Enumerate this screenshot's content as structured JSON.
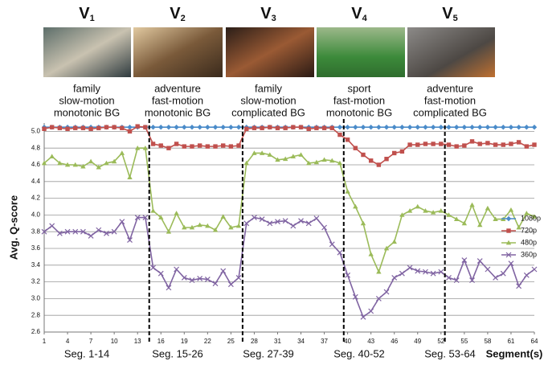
{
  "chart_data": {
    "type": "line",
    "videos": [
      {
        "name": "V",
        "sub": "1",
        "lines": [
          "family",
          "slow-motion",
          "monotonic BG"
        ]
      },
      {
        "name": "V",
        "sub": "2",
        "lines": [
          "adventure",
          "fast-motion",
          "monotonic BG"
        ]
      },
      {
        "name": "V",
        "sub": "3",
        "lines": [
          "family",
          "slow-motion",
          "complicated BG"
        ]
      },
      {
        "name": "V",
        "sub": "4",
        "lines": [
          "sport",
          "fast-motion",
          "monotonic BG"
        ]
      },
      {
        "name": "V",
        "sub": "5",
        "lines": [
          "adventure",
          "fast-motion",
          "complicated BG"
        ]
      }
    ],
    "segments": [
      "Seg. 1-14",
      "Seg. 15-26",
      "Seg. 27-39",
      "Seg. 40-52",
      "Seg. 53-64"
    ],
    "dividers": [
      14.5,
      26.5,
      39.5,
      52.5
    ],
    "y_label": "Avg. Q-score",
    "x_label": "Segment(s)",
    "xlim": [
      1,
      64
    ],
    "xticks": [
      1,
      4,
      7,
      10,
      13,
      16,
      19,
      22,
      25,
      28,
      31,
      34,
      37,
      40,
      43,
      46,
      49,
      52,
      55,
      58,
      61,
      64
    ],
    "ylim": [
      2.6,
      5.1
    ],
    "yticks": [
      2.6,
      2.8,
      {
        "value": 3,
        "label": "3.0"
      },
      3.2,
      3.4,
      3.6,
      3.8,
      {
        "value": 4,
        "label": "4.0"
      },
      4.2,
      4.4,
      4.6,
      4.8,
      {
        "value": 5,
        "label": "5.0"
      }
    ],
    "grid": true,
    "legend": "right",
    "x": [
      1,
      2,
      3,
      4,
      5,
      6,
      7,
      8,
      9,
      10,
      11,
      12,
      13,
      14,
      15,
      16,
      17,
      18,
      19,
      20,
      21,
      22,
      23,
      24,
      25,
      26,
      27,
      28,
      29,
      30,
      31,
      32,
      33,
      34,
      35,
      36,
      37,
      38,
      39,
      40,
      41,
      42,
      43,
      44,
      45,
      46,
      47,
      48,
      49,
      50,
      51,
      52,
      53,
      54,
      55,
      56,
      57,
      58,
      59,
      60,
      61,
      62,
      63,
      64
    ],
    "series": [
      {
        "name": "1080p",
        "color": "#4a8bc9",
        "marker": "diamond",
        "values": [
          5.05,
          5.05,
          5.05,
          5.05,
          5.05,
          5.05,
          5.05,
          5.05,
          5.05,
          5.05,
          5.05,
          5.05,
          5.05,
          5.05,
          5.05,
          5.05,
          5.05,
          5.05,
          5.05,
          5.05,
          5.05,
          5.05,
          5.05,
          5.05,
          5.05,
          5.05,
          5.05,
          5.05,
          5.05,
          5.05,
          5.05,
          5.05,
          5.05,
          5.05,
          5.05,
          5.05,
          5.05,
          5.05,
          5.05,
          5.05,
          5.05,
          5.05,
          5.05,
          5.05,
          5.05,
          5.05,
          5.05,
          5.05,
          5.05,
          5.05,
          5.05,
          5.05,
          5.05,
          5.05,
          5.05,
          5.05,
          5.05,
          5.05,
          5.05,
          5.05,
          5.05,
          5.05,
          5.05,
          5.05
        ]
      },
      {
        "name": "720p",
        "color": "#c0504d",
        "marker": "square",
        "values": [
          5.03,
          5.05,
          5.04,
          5.03,
          5.04,
          5.04,
          5.03,
          5.04,
          5.05,
          5.05,
          5.04,
          5.0,
          5.06,
          5.05,
          4.85,
          4.83,
          4.8,
          4.85,
          4.82,
          4.82,
          4.83,
          4.82,
          4.82,
          4.83,
          4.82,
          4.83,
          5.03,
          5.04,
          5.04,
          5.05,
          5.04,
          5.04,
          5.05,
          5.05,
          5.03,
          5.04,
          5.04,
          5.04,
          4.96,
          4.9,
          4.8,
          4.72,
          4.65,
          4.6,
          4.67,
          4.74,
          4.76,
          4.84,
          4.84,
          4.85,
          4.85,
          4.85,
          4.84,
          4.82,
          4.83,
          4.88,
          4.85,
          4.86,
          4.84,
          4.84,
          4.85,
          4.87,
          4.82,
          4.84
        ]
      },
      {
        "name": "480p",
        "color": "#9bbb59",
        "marker": "triangle",
        "values": [
          4.62,
          4.7,
          4.62,
          4.6,
          4.6,
          4.58,
          4.64,
          4.57,
          4.62,
          4.64,
          4.74,
          4.45,
          4.8,
          4.8,
          4.05,
          3.97,
          3.8,
          4.02,
          3.85,
          3.85,
          3.88,
          3.87,
          3.82,
          3.98,
          3.85,
          3.87,
          4.62,
          4.74,
          4.74,
          4.72,
          4.66,
          4.67,
          4.7,
          4.72,
          4.62,
          4.63,
          4.66,
          4.65,
          4.62,
          4.28,
          4.1,
          3.9,
          3.53,
          3.32,
          3.6,
          3.68,
          4.0,
          4.05,
          4.1,
          4.05,
          4.03,
          4.05,
          4.0,
          3.95,
          3.9,
          4.12,
          3.88,
          4.08,
          3.95,
          3.95,
          4.06,
          3.85,
          4.02,
          3.98
        ]
      },
      {
        "name": "360p",
        "color": "#8064a2",
        "marker": "x",
        "values": [
          3.8,
          3.87,
          3.78,
          3.8,
          3.8,
          3.8,
          3.75,
          3.82,
          3.78,
          3.8,
          3.92,
          3.7,
          3.97,
          3.97,
          3.37,
          3.3,
          3.13,
          3.35,
          3.25,
          3.22,
          3.24,
          3.23,
          3.18,
          3.33,
          3.17,
          3.25,
          3.9,
          3.97,
          3.95,
          3.9,
          3.92,
          3.93,
          3.87,
          3.93,
          3.9,
          3.96,
          3.85,
          3.65,
          3.55,
          3.28,
          3.02,
          2.78,
          2.85,
          3.0,
          3.08,
          3.25,
          3.3,
          3.37,
          3.33,
          3.32,
          3.3,
          3.32,
          3.25,
          3.22,
          3.46,
          3.22,
          3.45,
          3.35,
          3.25,
          3.3,
          3.42,
          3.15,
          3.28,
          3.35
        ]
      }
    ]
  }
}
